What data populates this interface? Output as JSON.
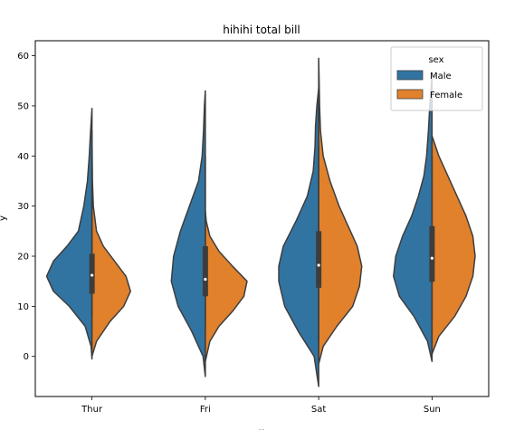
{
  "chart_data": {
    "type": "violin",
    "title": "hihihi total bill",
    "xlabel": "x",
    "ylabel": "y",
    "categories": [
      "Thur",
      "Fri",
      "Sat",
      "Sun"
    ],
    "ylim": [
      -8,
      63
    ],
    "yticks": [
      0,
      10,
      20,
      30,
      40,
      50,
      60
    ],
    "grid": false,
    "split": true,
    "legend": {
      "title": "sex",
      "placement": "top-right",
      "entries": [
        {
          "name": "Male",
          "color": "#3274a1"
        },
        {
          "name": "Female",
          "color": "#e1812c"
        }
      ]
    },
    "series": [
      {
        "name": "Male",
        "color": "#3274a1",
        "violins": [
          {
            "category": "Thur",
            "min": -0.5,
            "max": 49.5,
            "density": [
              [
                -0.5,
                0
              ],
              [
                2,
                0.02
              ],
              [
                6,
                0.15
              ],
              [
                10,
                0.5
              ],
              [
                13,
                0.85
              ],
              [
                16,
                1.0
              ],
              [
                19,
                0.85
              ],
              [
                22,
                0.55
              ],
              [
                25,
                0.3
              ],
              [
                30,
                0.18
              ],
              [
                35,
                0.1
              ],
              [
                40,
                0.06
              ],
              [
                45,
                0.03
              ],
              [
                49.5,
                0
              ]
            ]
          },
          {
            "category": "Fri",
            "min": -4,
            "max": 53,
            "density": [
              [
                -4,
                0
              ],
              [
                0,
                0.05
              ],
              [
                5,
                0.3
              ],
              [
                10,
                0.6
              ],
              [
                15,
                0.75
              ],
              [
                20,
                0.7
              ],
              [
                25,
                0.55
              ],
              [
                30,
                0.35
              ],
              [
                35,
                0.15
              ],
              [
                40,
                0.07
              ],
              [
                45,
                0.04
              ],
              [
                50,
                0.02
              ],
              [
                53,
                0
              ]
            ]
          },
          {
            "category": "Sat",
            "min": -6,
            "max": 53.5,
            "density": [
              [
                -6,
                0
              ],
              [
                0,
                0.1
              ],
              [
                5,
                0.45
              ],
              [
                10,
                0.75
              ],
              [
                15,
                0.88
              ],
              [
                18,
                0.88
              ],
              [
                22,
                0.78
              ],
              [
                27,
                0.5
              ],
              [
                32,
                0.25
              ],
              [
                37,
                0.12
              ],
              [
                42,
                0.08
              ],
              [
                46,
                0.07
              ],
              [
                50,
                0.04
              ],
              [
                53.5,
                0
              ]
            ]
          },
          {
            "category": "Sun",
            "min": -1,
            "max": 56,
            "density": [
              [
                -1,
                0
              ],
              [
                3,
                0.1
              ],
              [
                8,
                0.4
              ],
              [
                12,
                0.72
              ],
              [
                16,
                0.85
              ],
              [
                20,
                0.8
              ],
              [
                24,
                0.65
              ],
              [
                28,
                0.45
              ],
              [
                32,
                0.3
              ],
              [
                36,
                0.18
              ],
              [
                40,
                0.12
              ],
              [
                45,
                0.08
              ],
              [
                50,
                0.05
              ],
              [
                56,
                0
              ]
            ]
          }
        ]
      },
      {
        "name": "Female",
        "color": "#e1812c",
        "violins": [
          {
            "category": "Thur",
            "min": 0,
            "max": 45,
            "density": [
              [
                0,
                0
              ],
              [
                3,
                0.1
              ],
              [
                7,
                0.4
              ],
              [
                10,
                0.7
              ],
              [
                13,
                0.85
              ],
              [
                16,
                0.75
              ],
              [
                19,
                0.5
              ],
              [
                22,
                0.25
              ],
              [
                25,
                0.1
              ],
              [
                30,
                0.03
              ],
              [
                35,
                0.01
              ],
              [
                45,
                0
              ]
            ]
          },
          {
            "category": "Fri",
            "min": -1,
            "max": 29,
            "density": [
              [
                -1,
                0
              ],
              [
                3,
                0.1
              ],
              [
                6,
                0.3
              ],
              [
                9,
                0.6
              ],
              [
                12,
                0.85
              ],
              [
                15,
                0.92
              ],
              [
                18,
                0.6
              ],
              [
                21,
                0.3
              ],
              [
                24,
                0.1
              ],
              [
                27,
                0.02
              ],
              [
                29,
                0
              ]
            ]
          },
          {
            "category": "Sat",
            "min": -1.5,
            "max": 59.5,
            "density": [
              [
                -1.5,
                0
              ],
              [
                2,
                0.1
              ],
              [
                6,
                0.4
              ],
              [
                10,
                0.75
              ],
              [
                14,
                0.9
              ],
              [
                18,
                0.95
              ],
              [
                22,
                0.85
              ],
              [
                26,
                0.65
              ],
              [
                30,
                0.45
              ],
              [
                35,
                0.25
              ],
              [
                40,
                0.1
              ],
              [
                45,
                0.04
              ],
              [
                50,
                0.02
              ],
              [
                55,
                0.01
              ],
              [
                59.5,
                0
              ]
            ]
          },
          {
            "category": "Sun",
            "min": 0.5,
            "max": 44,
            "density": [
              [
                0.5,
                0
              ],
              [
                4,
                0.15
              ],
              [
                8,
                0.5
              ],
              [
                12,
                0.75
              ],
              [
                16,
                0.9
              ],
              [
                20,
                0.95
              ],
              [
                24,
                0.9
              ],
              [
                28,
                0.75
              ],
              [
                32,
                0.55
              ],
              [
                36,
                0.35
              ],
              [
                40,
                0.15
              ],
              [
                44,
                0
              ]
            ]
          }
        ]
      }
    ],
    "boxes": [
      {
        "category": "Thur",
        "q1": 12.5,
        "median": 16.2,
        "q3": 20.5,
        "whisker_low": 8,
        "whisker_high": 32
      },
      {
        "category": "Fri",
        "q1": 12,
        "median": 15.4,
        "q3": 22,
        "whisker_low": 6,
        "whisker_high": 40
      },
      {
        "category": "Sat",
        "q1": 13.7,
        "median": 18.2,
        "q3": 25,
        "whisker_low": 3,
        "whisker_high": 42
      },
      {
        "category": "Sun",
        "q1": 14.9,
        "median": 19.6,
        "q3": 26,
        "whisker_low": 7.3,
        "whisker_high": 40
      }
    ]
  }
}
